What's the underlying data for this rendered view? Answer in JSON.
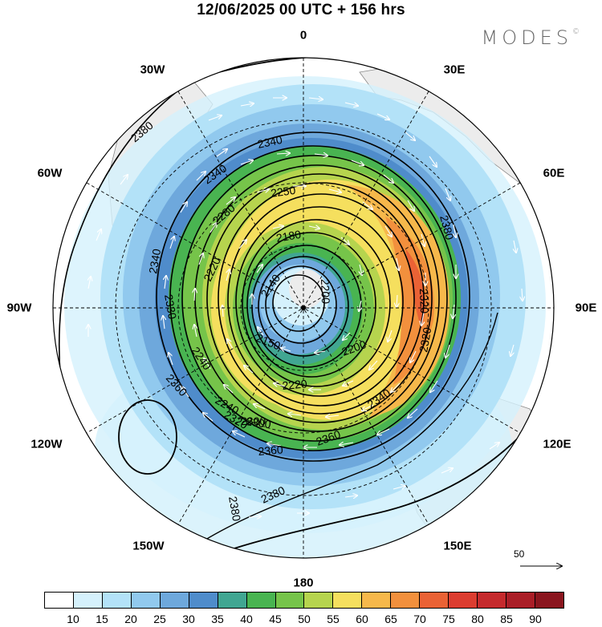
{
  "title": "12/06/2025  00 UTC  + 156 hrs",
  "brand": "MODES",
  "brand_mark": "©",
  "longitude_labels": {
    "top": "0",
    "bottom": "180",
    "left": "90W",
    "right": "90E",
    "w30": "30W",
    "e30": "30E",
    "w60": "60W",
    "e60": "60E",
    "w120": "120W",
    "e120": "120E",
    "w150": "150W",
    "e150": "150E"
  },
  "contour_labels": [
    "2380",
    "2340",
    "2340",
    "2250",
    "2280",
    "2180",
    "2220",
    "2140",
    "2200",
    "2150",
    "2240",
    "2330",
    "2340",
    "2320",
    "2220",
    "2300",
    "2200",
    "2240",
    "2320",
    "2360",
    "2360",
    "2320",
    "2300",
    "2340",
    "2360",
    "2380",
    "2380",
    "2380"
  ],
  "reference_vector": {
    "value": "50"
  },
  "colorbar": {
    "colors": [
      "#ffffff",
      "#d5f1fc",
      "#b3e2f8",
      "#91c9ee",
      "#6ea8dc",
      "#4f8ccb",
      "#41a692",
      "#49b451",
      "#76c44a",
      "#b6d44e",
      "#f5df5e",
      "#f6b84b",
      "#f2903d",
      "#ea6235",
      "#dc3d30",
      "#c52a2d",
      "#aa1e27",
      "#8a151e"
    ],
    "ticks": [
      "10",
      "15",
      "20",
      "25",
      "30",
      "35",
      "40",
      "45",
      "50",
      "55",
      "60",
      "65",
      "70",
      "75",
      "80",
      "85",
      "90"
    ]
  }
}
